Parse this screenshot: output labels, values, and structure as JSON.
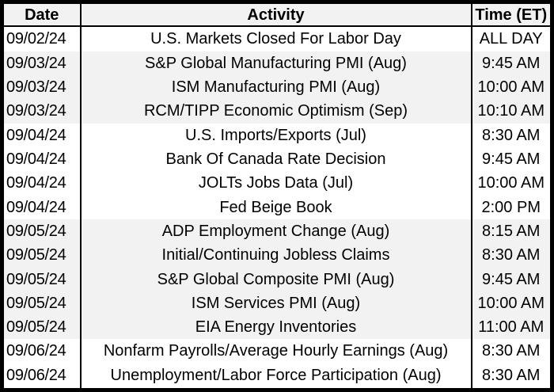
{
  "table": {
    "columns": [
      "Date",
      "Activity",
      "Time (ET)"
    ],
    "rows": [
      {
        "date": "09/02/24",
        "activity": "U.S. Markets Closed For Labor Day",
        "time": "ALL DAY"
      },
      {
        "date": "09/03/24",
        "activity": "S&P Global Manufacturing PMI (Aug)",
        "time": "9:45 AM"
      },
      {
        "date": "09/03/24",
        "activity": "ISM Manufacturing PMI (Aug)",
        "time": "10:00 AM"
      },
      {
        "date": "09/03/24",
        "activity": "RCM/TIPP Economic Optimism (Sep)",
        "time": "10:10 AM"
      },
      {
        "date": "09/04/24",
        "activity": "U.S. Imports/Exports (Jul)",
        "time": "8:30 AM"
      },
      {
        "date": "09/04/24",
        "activity": "Bank Of Canada Rate Decision",
        "time": "9:45 AM"
      },
      {
        "date": "09/04/24",
        "activity": "JOLTs Jobs Data (Jul)",
        "time": "10:00 AM"
      },
      {
        "date": "09/04/24",
        "activity": "Fed Beige Book",
        "time": "2:00 PM"
      },
      {
        "date": "09/05/24",
        "activity": "ADP Employment Change (Aug)",
        "time": "8:15 AM"
      },
      {
        "date": "09/05/24",
        "activity": "Initial/Continuing Jobless Claims",
        "time": "8:30 AM"
      },
      {
        "date": "09/05/24",
        "activity": "S&P Global Composite PMI (Aug)",
        "time": "9:45 AM"
      },
      {
        "date": "09/05/24",
        "activity": "ISM Services PMI (Aug)",
        "time": "10:00 AM"
      },
      {
        "date": "09/05/24",
        "activity": "EIA Energy Inventories",
        "time": "11:00 AM"
      },
      {
        "date": "09/06/24",
        "activity": "Nonfarm Payrolls/Average Hourly Earnings (Aug)",
        "time": "8:30 AM"
      },
      {
        "date": "09/06/24",
        "activity": "Unemployment/Labor Force Participation (Aug)",
        "time": "8:30 AM"
      }
    ]
  },
  "colors": {
    "border": "#000000",
    "text": "#000000",
    "row_band": "#f2f2f2",
    "row_plain": "#ffffff"
  }
}
